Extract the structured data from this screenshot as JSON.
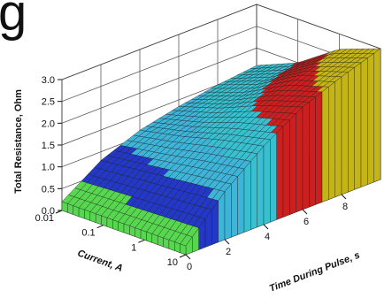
{
  "partial_title": "g",
  "chart_data": {
    "type": "surface",
    "title": "",
    "z_label": "Total Resistance, Ohm",
    "x_label": "Current, A",
    "y_label": "Time During Pulse, s",
    "z_ticks": [
      "0.0",
      "0.5",
      "1.0",
      "1.5",
      "2.0",
      "2.5",
      "3.0"
    ],
    "x_ticks": [
      "0.01",
      "0.1",
      "1",
      "10"
    ],
    "y_ticks": [
      "0",
      "2",
      "4",
      "6",
      "8"
    ],
    "z_range": [
      0,
      3
    ],
    "x_range_log10": [
      -2,
      1
    ],
    "y_range": [
      0,
      10
    ],
    "x_scale": "log",
    "color_bands": [
      {
        "from": 0.0,
        "to": 0.5,
        "color": "#57d64f"
      },
      {
        "from": 0.5,
        "to": 1.0,
        "color": "#2438c8"
      },
      {
        "from": 1.0,
        "to": 1.5,
        "color": "#3db4d8"
      },
      {
        "from": 1.5,
        "to": 2.0,
        "color": "#38c0d0"
      },
      {
        "from": 2.0,
        "to": 2.5,
        "color": "#cc1f1f"
      },
      {
        "from": 2.5,
        "to": 3.0,
        "color": "#c4b416"
      }
    ],
    "surface_samples": [
      {
        "current": 0.01,
        "time": [
          0,
          2,
          4,
          6,
          8,
          10
        ],
        "resistance": [
          0.2,
          0.8,
          1.15,
          1.35,
          1.5,
          1.6
        ]
      },
      {
        "current": 0.1,
        "time": [
          0,
          2,
          4,
          6,
          8,
          10
        ],
        "resistance": [
          0.2,
          0.9,
          1.35,
          1.65,
          1.85,
          2.0
        ]
      },
      {
        "current": 1,
        "time": [
          0,
          2,
          4,
          6,
          8,
          10
        ],
        "resistance": [
          0.2,
          1.0,
          1.6,
          2.05,
          2.4,
          2.65
        ]
      },
      {
        "current": 10,
        "time": [
          0,
          2,
          4,
          6,
          8,
          10
        ],
        "resistance": [
          0.2,
          1.1,
          1.8,
          2.35,
          2.7,
          3.0
        ]
      }
    ],
    "grid": true,
    "floor_color": "#c8c8c8"
  }
}
